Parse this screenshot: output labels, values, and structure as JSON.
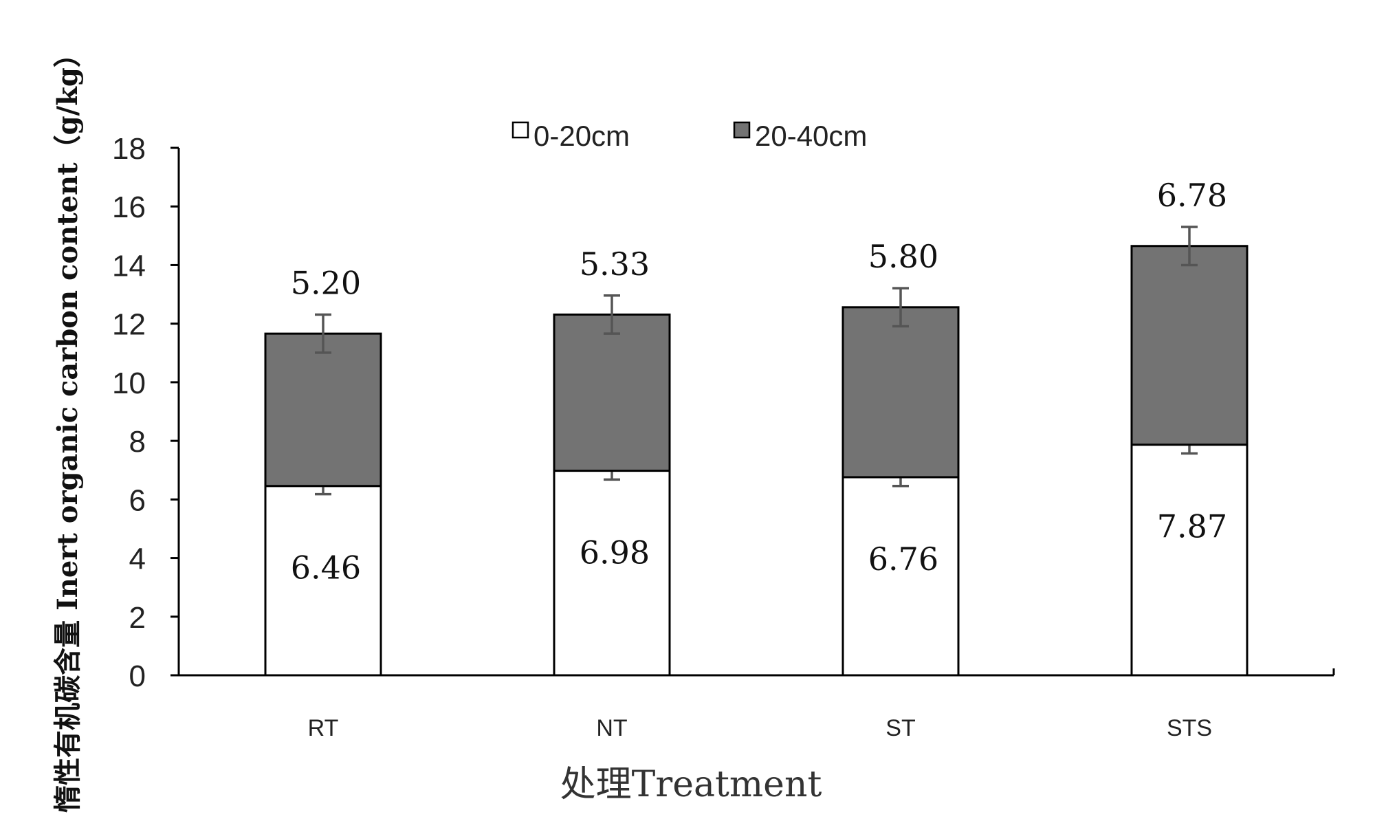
{
  "chart_data": {
    "type": "bar",
    "stacked": true,
    "categories": [
      "RT",
      "NT",
      "ST",
      "STS"
    ],
    "series": [
      {
        "name": "0-20cm",
        "values": [
          6.46,
          6.98,
          6.76,
          7.87
        ],
        "errors": [
          0.28,
          0.3,
          0.3,
          0.3
        ],
        "color": "#ffffff",
        "labels": [
          "6.46",
          "6.98",
          "6.76",
          "7.87"
        ]
      },
      {
        "name": "20-40cm",
        "values": [
          5.2,
          5.33,
          5.8,
          6.78
        ],
        "errors": [
          0.65,
          0.65,
          0.65,
          0.65
        ],
        "color": "#737373",
        "labels": [
          "5.20",
          "5.33",
          "5.80",
          "6.78"
        ]
      }
    ],
    "title": "",
    "xlabel": "处理Treatment",
    "ylabel": "惰性有机碳含量 Inert organic carbon content（g/kg）",
    "ylim": [
      0,
      18
    ],
    "yticks": [
      "0",
      "2",
      "4",
      "6",
      "8",
      "10",
      "12",
      "14",
      "16",
      "18"
    ],
    "grid": false,
    "legend": "top-center"
  }
}
